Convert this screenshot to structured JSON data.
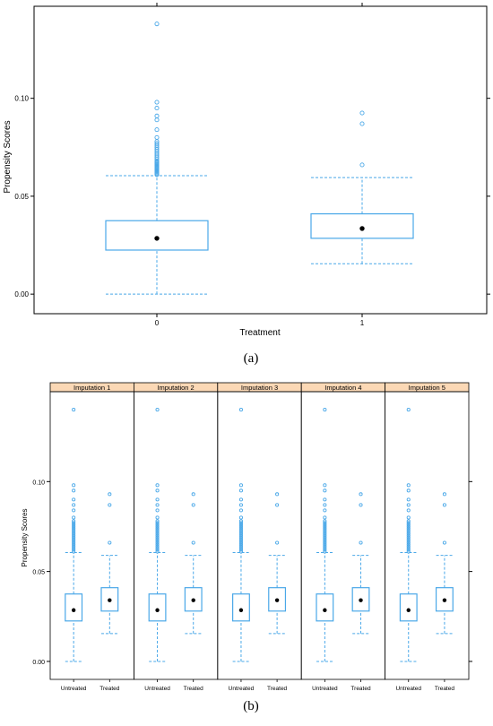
{
  "figure_a": {
    "caption": "(a)",
    "chart_data": {
      "type": "boxplot",
      "xlabel": "Treatment",
      "ylabel": "Propensity Scores",
      "categories": [
        "0",
        "1"
      ],
      "ylim": [
        -0.01,
        0.147
      ],
      "yticks": [
        0.0,
        0.05,
        0.1
      ],
      "ytick_labels": [
        "0.00",
        "0.05",
        "0.10"
      ],
      "grid": false,
      "boxes": [
        {
          "category": "0",
          "whisker_low": 0.0,
          "q1": 0.0225,
          "median": 0.0285,
          "q3": 0.0375,
          "whisker_high": 0.0605,
          "outliers": [
            0.061,
            0.0615,
            0.062,
            0.0625,
            0.063,
            0.0635,
            0.064,
            0.0645,
            0.065,
            0.0655,
            0.066,
            0.0665,
            0.067,
            0.0675,
            0.068,
            0.069,
            0.07,
            0.071,
            0.072,
            0.073,
            0.074,
            0.075,
            0.076,
            0.077,
            0.078,
            0.08,
            0.084,
            0.089,
            0.091,
            0.095,
            0.098,
            0.138
          ]
        },
        {
          "category": "1",
          "whisker_low": 0.0155,
          "q1": 0.0285,
          "median": 0.0335,
          "q3": 0.041,
          "whisker_high": 0.0595,
          "outliers": [
            0.066,
            0.087,
            0.0925
          ]
        }
      ]
    }
  },
  "figure_b": {
    "caption": "(b)",
    "chart_data": {
      "type": "boxplot",
      "ylabel": "Propensity Scores",
      "categories": [
        "Untreated",
        "Treated"
      ],
      "ylim": [
        -0.01,
        0.15
      ],
      "yticks": [
        0.0,
        0.05,
        0.1
      ],
      "ytick_labels": [
        "0.00",
        "0.05",
        "0.10"
      ],
      "grid": false,
      "panels": [
        {
          "title": "Imputation 1"
        },
        {
          "title": "Imputation 2"
        },
        {
          "title": "Imputation 3"
        },
        {
          "title": "Imputation 4"
        },
        {
          "title": "Imputation 5"
        }
      ],
      "boxes": [
        {
          "category": "Untreated",
          "whisker_low": 0.0,
          "q1": 0.0225,
          "median": 0.0285,
          "q3": 0.0375,
          "whisker_high": 0.0605,
          "outliers": [
            0.061,
            0.062,
            0.063,
            0.064,
            0.065,
            0.066,
            0.067,
            0.068,
            0.069,
            0.07,
            0.071,
            0.072,
            0.073,
            0.074,
            0.075,
            0.076,
            0.077,
            0.078,
            0.08,
            0.084,
            0.087,
            0.09,
            0.095,
            0.098,
            0.14
          ]
        },
        {
          "category": "Treated",
          "whisker_low": 0.0155,
          "q1": 0.028,
          "median": 0.034,
          "q3": 0.041,
          "whisker_high": 0.059,
          "outliers": [
            0.066,
            0.087,
            0.093
          ]
        }
      ]
    }
  },
  "colors": {
    "box": "#4aa8e8",
    "panel_header": "#fbd8b5",
    "axis": "#000000",
    "median_dot": "#000000"
  }
}
